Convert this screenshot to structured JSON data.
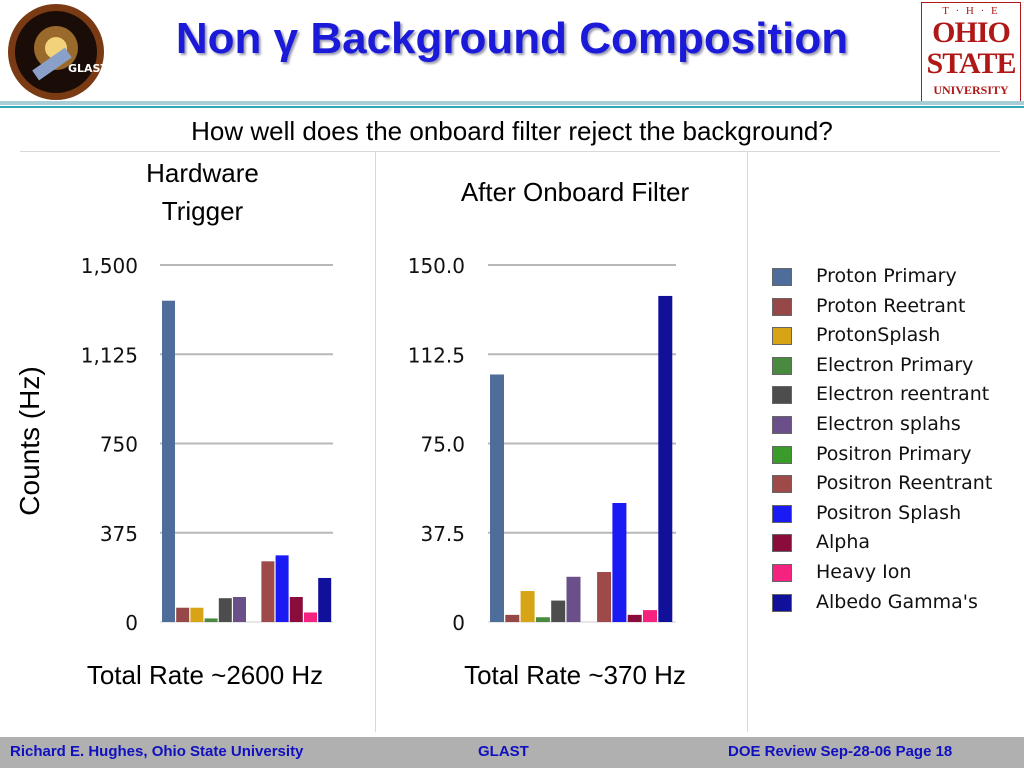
{
  "slide": {
    "title": "Non γ Background Composition",
    "subtitle": "How well does the onboard filter reject the background?",
    "ylabel": "Counts (Hz)",
    "left_header": "Hardware\nTrigger",
    "right_header": "After Onboard Filter",
    "left_total": "Total Rate ~2600 Hz",
    "right_total": "Total Rate ~370 Hz"
  },
  "logos": {
    "left_text": "GLAST",
    "osu_the": "T · H · E",
    "osu_ohio": "OHIO",
    "osu_state": "STATE",
    "osu_univ": "UNIVERSITY"
  },
  "footer": {
    "author": "Richard E. Hughes, Ohio State University",
    "center": "GLAST",
    "right": "DOE Review Sep-28-06   Page   18"
  },
  "legend": [
    {
      "name": "Proton Primary",
      "color": "#4e6d9a"
    },
    {
      "name": "Proton Reetrant",
      "color": "#964848"
    },
    {
      "name": "ProtonSplash",
      "color": "#d6a415"
    },
    {
      "name": "Electron Primary",
      "color": "#4a8a40"
    },
    {
      "name": "Electron reentrant",
      "color": "#4d4d4d"
    },
    {
      "name": "Electron splahs",
      "color": "#6a4f8a"
    },
    {
      "name": "Positron Primary",
      "color": "#3a9a2a"
    },
    {
      "name": "Positron Reentrant",
      "color": "#9e4a48"
    },
    {
      "name": "Positron Splash",
      "color": "#1a1af5"
    },
    {
      "name": "Alpha",
      "color": "#8a0c3a"
    },
    {
      "name": "Heavy Ion",
      "color": "#f5237f"
    },
    {
      "name": "Albedo Gamma's",
      "color": "#10109a"
    }
  ],
  "chart_data": [
    {
      "type": "bar",
      "title": "Hardware Trigger",
      "ylabel": "Counts (Hz)",
      "ylim": [
        0,
        1500
      ],
      "yticks": [
        "0",
        "375",
        "750",
        "1,125",
        "1,500"
      ],
      "ytick_values": [
        0,
        375,
        750,
        1125,
        1500
      ],
      "grid": true,
      "categories": [
        "Proton Primary",
        "Proton Reetrant",
        "ProtonSplash",
        "Electron Primary",
        "Electron reentrant",
        "Electron splahs",
        "Positron Primary",
        "Positron Reentrant",
        "Positron Splash",
        "Alpha",
        "Heavy Ion",
        "Albedo Gamma's"
      ],
      "values": [
        1350,
        60,
        60,
        15,
        100,
        105,
        0,
        255,
        280,
        105,
        40,
        185
      ]
    },
    {
      "type": "bar",
      "title": "After Onboard Filter",
      "ylim": [
        0,
        150
      ],
      "yticks": [
        "0",
        "37.5",
        "75.0",
        "112.5",
        "150.0"
      ],
      "ytick_values": [
        0,
        37.5,
        75,
        112.5,
        150
      ],
      "grid": true,
      "categories": [
        "Proton Primary",
        "Proton Reetrant",
        "ProtonSplash",
        "Electron Primary",
        "Electron reentrant",
        "Electron splahs",
        "Positron Primary",
        "Positron Reentrant",
        "Positron Splash",
        "Alpha",
        "Heavy Ion",
        "Albedo Gamma's"
      ],
      "values": [
        104,
        3,
        13,
        2,
        9,
        19,
        0,
        21,
        50,
        3,
        5,
        137
      ]
    }
  ]
}
